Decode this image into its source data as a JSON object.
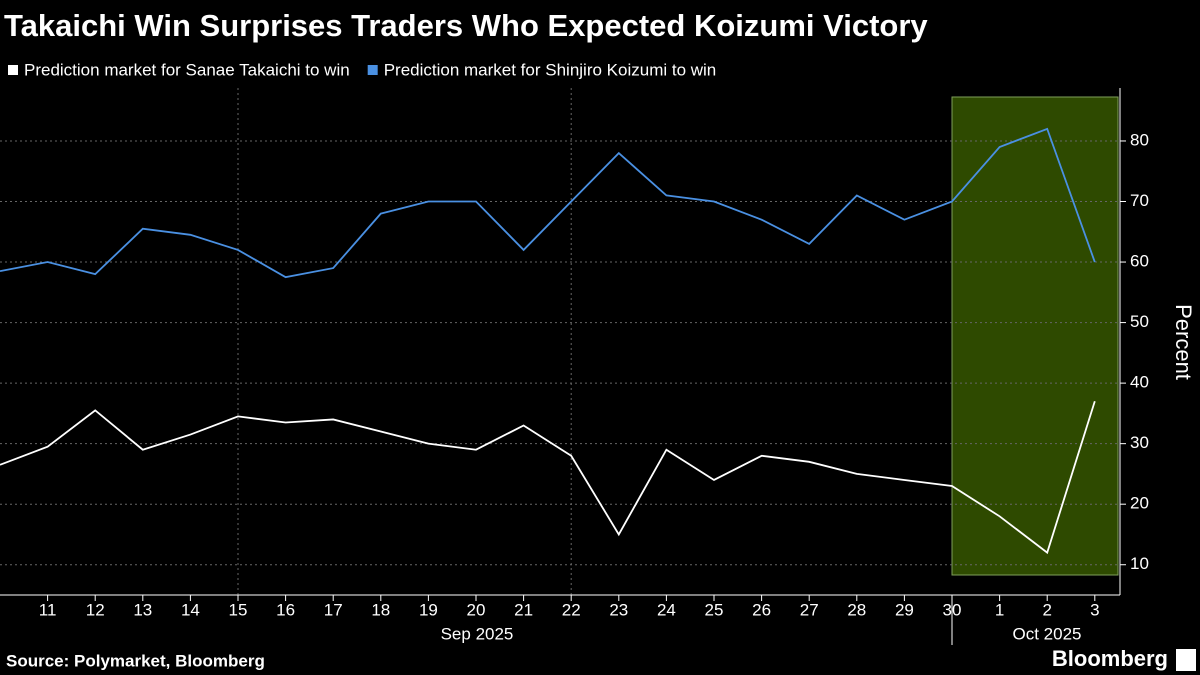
{
  "chart_data": {
    "type": "line",
    "title": "Takaichi Win Surprises Traders Who Expected Koizumi Victory",
    "y_label": "Percent",
    "source": "Source: Polymarket, Bloomberg",
    "brand": "Bloomberg",
    "categories": [
      null,
      "11",
      "12",
      "13",
      "14",
      "15",
      "16",
      "17",
      "18",
      "19",
      "20",
      "21",
      "22",
      "23",
      "24",
      "25",
      "26",
      "27",
      "28",
      "29",
      "30",
      "1",
      "2",
      "3"
    ],
    "x_groups": [
      "Sep 2025",
      "Oct 2025"
    ],
    "series": [
      {
        "name": "Prediction market for Sanae Takaichi to win",
        "color": "#ffffff",
        "values": [
          26.5,
          29.5,
          35.5,
          29,
          31.5,
          34.5,
          33.5,
          34,
          32,
          30,
          29,
          33,
          28,
          15,
          29,
          24,
          28,
          27,
          25,
          24,
          23,
          18,
          12,
          37
        ]
      },
      {
        "name": "Prediction market for Shinjiro Koizumi to win",
        "color": "#4a90e2",
        "values": [
          58.5,
          60,
          58,
          65.5,
          64.5,
          62,
          57.5,
          59,
          68,
          70,
          70,
          62,
          70,
          78,
          71,
          70,
          67,
          63,
          71,
          67,
          70,
          79,
          82,
          60
        ]
      }
    ],
    "ylim": [
      5,
      88.75
    ],
    "yticks": [
      10,
      20,
      30,
      40,
      50,
      60,
      70,
      80
    ],
    "grid": true
  }
}
